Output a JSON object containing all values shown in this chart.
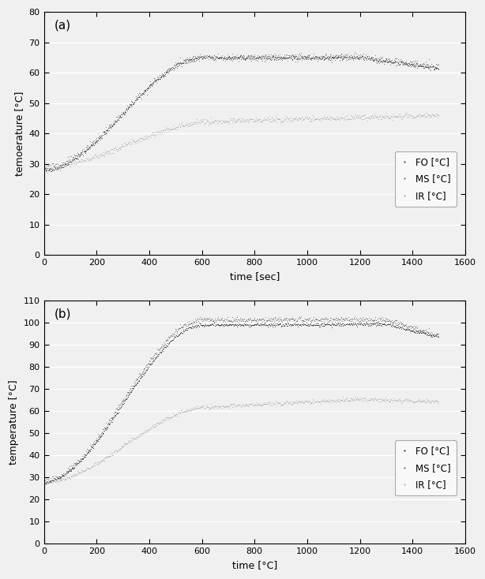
{
  "panel_a": {
    "label": "(a)",
    "xlabel": "time [sec]",
    "ylabel": "temoerature [°C]",
    "xlim": [
      0,
      1600
    ],
    "ylim": [
      0,
      80
    ],
    "xticks": [
      0,
      200,
      400,
      600,
      800,
      1000,
      1200,
      1400,
      1600
    ],
    "yticks": [
      0,
      10,
      20,
      30,
      40,
      50,
      60,
      70,
      80
    ],
    "FO": {
      "color": "#333333",
      "start": 28.0,
      "ramp_end_t": 600,
      "ramp_end_T": 65.0,
      "plateau_T": 65.0,
      "plateau_end_t": 1200,
      "end_t": 1490,
      "end_T": 61.5
    },
    "MS": {
      "color": "#666666",
      "start": 28.5,
      "ramp_end_t": 600,
      "ramp_end_T": 65.0,
      "plateau_T": 65.2,
      "plateau_end_t": 1200,
      "end_t": 1490,
      "end_T": 62.0
    },
    "IR": {
      "color": "#aaaaaa",
      "start": 29.0,
      "ramp_end_t": 640,
      "ramp_end_T": 44.0,
      "plateau_T": 46.0,
      "plateau_end_t": 1490,
      "end_t": 1490,
      "end_T": 46.0
    }
  },
  "panel_b": {
    "label": "(b)",
    "xlabel": "time [°C]",
    "ylabel": "temperature [°C]",
    "xlim": [
      0,
      1600
    ],
    "ylim": [
      0,
      110
    ],
    "xticks": [
      0,
      200,
      400,
      600,
      800,
      1000,
      1200,
      1400,
      1600
    ],
    "yticks": [
      0,
      10,
      20,
      30,
      40,
      50,
      60,
      70,
      80,
      90,
      100,
      110
    ],
    "FO": {
      "color": "#222222",
      "start": 28.0,
      "ramp_end_t": 600,
      "ramp_end_T": 99.0,
      "plateau_T": 99.5,
      "plateau_end_t": 1300,
      "end_t": 1490,
      "end_T": 94.0
    },
    "MS": {
      "color": "#666666",
      "start": 28.5,
      "ramp_end_t": 600,
      "ramp_end_T": 101.5,
      "plateau_T": 101.5,
      "plateau_end_t": 1300,
      "end_t": 1490,
      "end_T": 94.5
    },
    "IR": {
      "color": "#aaaaaa",
      "start": 28.0,
      "ramp_end_t": 620,
      "ramp_end_T": 62.0,
      "plateau_T": 65.5,
      "plateau_end_t": 1200,
      "end_t": 1490,
      "end_T": 64.5
    }
  },
  "background_color": "#f0f0f0",
  "plot_bg_color": "#f0f0f0",
  "grid_color": "#ffffff",
  "fig_bg_color": "#f0f0f0"
}
